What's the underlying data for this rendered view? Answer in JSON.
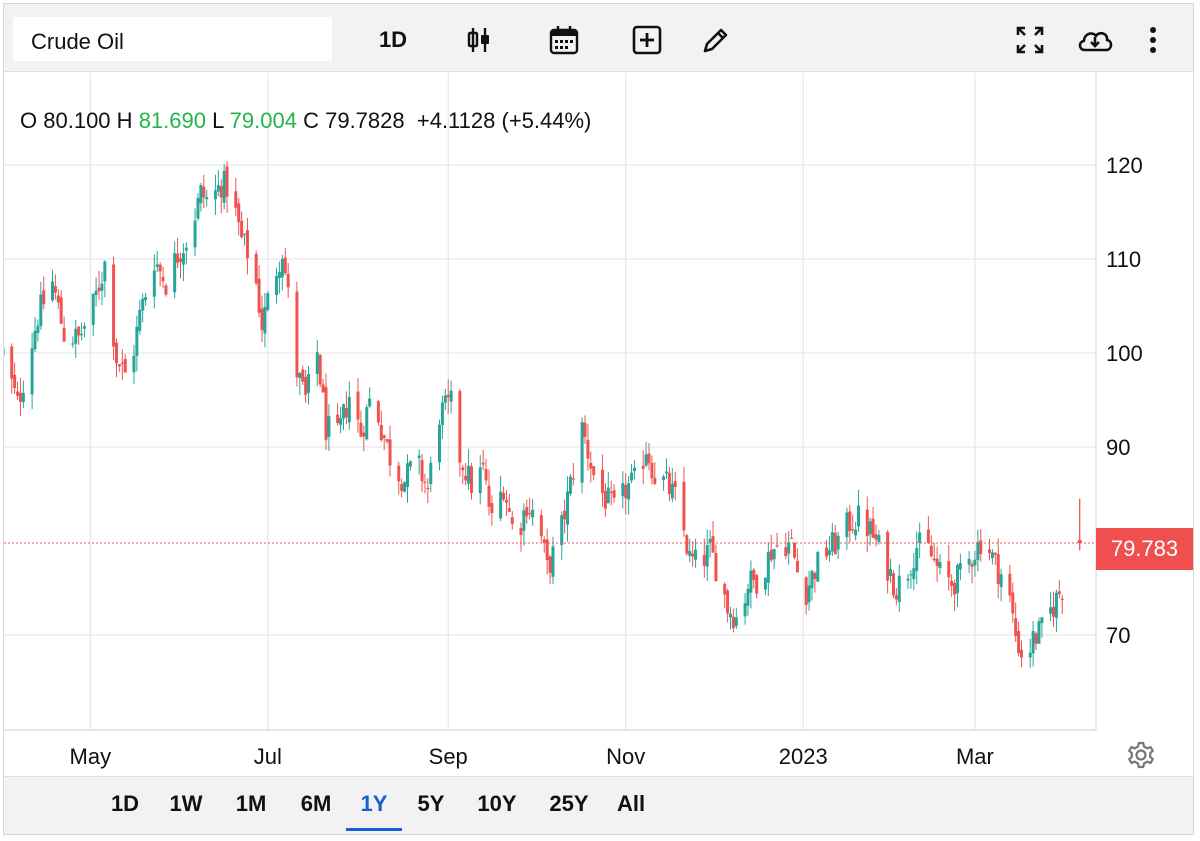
{
  "toolbar": {
    "symbol_value": "Crude Oil",
    "interval_label": "1D",
    "icons": [
      "candlestick-icon",
      "calendar-icon",
      "add-indicator-icon",
      "pencil-icon",
      "fullscreen-icon",
      "cloud-download-icon",
      "more-vertical-icon"
    ]
  },
  "ohlc": {
    "o_label": "O",
    "o_value": "80.100",
    "h_label": "H",
    "h_value": "81.690",
    "l_label": "L",
    "l_value": "79.004",
    "c_label": "C",
    "c_value": "79.7828",
    "change": "+4.1128",
    "change_pct": "(+5.44%)"
  },
  "price_tag": "79.783",
  "range_buttons": [
    {
      "label": "1D",
      "active": false
    },
    {
      "label": "1W",
      "active": false
    },
    {
      "label": "1M",
      "active": false
    },
    {
      "label": "6M",
      "active": false
    },
    {
      "label": "1Y",
      "active": true
    },
    {
      "label": "5Y",
      "active": false
    },
    {
      "label": "10Y",
      "active": false
    },
    {
      "label": "25Y",
      "active": false
    },
    {
      "label": "All",
      "active": false
    }
  ],
  "colors": {
    "up": "#26a69a",
    "down": "#ef5350",
    "up_text": "#25b34a",
    "accent": "#1a5fd1",
    "last_price": "#ef4f4f"
  },
  "chart_data": {
    "type": "candlestick",
    "title": "",
    "xlabel": "",
    "ylabel": "",
    "yticks": [
      120,
      110,
      100,
      90,
      70
    ],
    "ylim": [
      60,
      126
    ],
    "xticks": [
      "May",
      "Jul",
      "Sep",
      "Nov",
      "2023",
      "Mar"
    ],
    "last_close": 79.783,
    "last_candle": {
      "open": 80.1,
      "high": 81.69,
      "low": 79.004,
      "close": 79.7828
    },
    "close_path": [
      [
        "2022-04-01",
        100
      ],
      [
        "2022-04-06",
        94.5
      ],
      [
        "2022-04-08",
        97
      ],
      [
        "2022-04-13",
        104
      ],
      [
        "2022-04-18",
        107.5
      ],
      [
        "2022-04-22",
        102
      ],
      [
        "2022-04-27",
        101.5
      ],
      [
        "2022-05-02",
        105
      ],
      [
        "2022-05-06",
        109.5
      ],
      [
        "2022-05-10",
        99.5
      ],
      [
        "2022-05-14",
        97
      ],
      [
        "2022-05-18",
        104
      ],
      [
        "2022-05-23",
        110
      ],
      [
        "2022-05-27",
        107.5
      ],
      [
        "2022-05-31",
        110.5
      ],
      [
        "2022-06-04",
        112.5
      ],
      [
        "2022-06-08",
        117
      ],
      [
        "2022-06-11",
        116
      ],
      [
        "2022-06-15",
        118
      ],
      [
        "2022-06-18",
        117.5
      ],
      [
        "2022-06-22",
        112
      ],
      [
        "2022-06-26",
        109.5
      ],
      [
        "2022-06-29",
        103
      ],
      [
        "2022-07-03",
        108
      ],
      [
        "2022-07-06",
        111
      ],
      [
        "2022-07-08",
        106
      ],
      [
        "2022-07-11",
        98
      ],
      [
        "2022-07-14",
        95
      ],
      [
        "2022-07-18",
        100
      ],
      [
        "2022-07-21",
        92
      ],
      [
        "2022-07-25",
        91
      ],
      [
        "2022-07-29",
        95.5
      ],
      [
        "2022-08-02",
        91.5
      ],
      [
        "2022-08-06",
        96
      ],
      [
        "2022-08-09",
        92
      ],
      [
        "2022-08-13",
        88
      ],
      [
        "2022-08-17",
        86.5
      ],
      [
        "2022-08-21",
        88.5
      ],
      [
        "2022-08-25",
        85.5
      ],
      [
        "2022-08-29",
        93.5
      ],
      [
        "2022-09-02",
        94.5
      ],
      [
        "2022-09-05",
        89
      ],
      [
        "2022-09-09",
        86
      ],
      [
        "2022-09-13",
        87.5
      ],
      [
        "2022-09-16",
        82
      ],
      [
        "2022-09-20",
        86
      ],
      [
        "2022-09-24",
        80
      ],
      [
        "2022-09-28",
        84
      ],
      [
        "2022-10-02",
        82
      ],
      [
        "2022-10-05",
        77
      ],
      [
        "2022-10-09",
        80
      ],
      [
        "2022-10-13",
        86
      ],
      [
        "2022-10-17",
        92
      ],
      [
        "2022-10-21",
        87
      ],
      [
        "2022-10-25",
        84.5
      ],
      [
        "2022-10-29",
        83
      ],
      [
        "2022-11-01",
        85.5
      ],
      [
        "2022-11-05",
        86.5
      ],
      [
        "2022-11-08",
        90
      ],
      [
        "2022-11-11",
        87
      ],
      [
        "2022-11-15",
        86
      ],
      [
        "2022-11-19",
        84
      ],
      [
        "2022-11-23",
        78
      ],
      [
        "2022-11-26",
        77.5
      ],
      [
        "2022-11-30",
        79
      ],
      [
        "2022-12-03",
        76.5
      ],
      [
        "2022-12-06",
        73
      ],
      [
        "2022-12-10",
        71.5
      ],
      [
        "2022-12-13",
        75.5
      ],
      [
        "2022-12-17",
        76
      ],
      [
        "2022-12-21",
        79
      ],
      [
        "2022-12-25",
        80
      ],
      [
        "2022-12-28",
        79.5
      ],
      [
        "2023-01-01",
        74
      ],
      [
        "2023-01-05",
        77
      ],
      [
        "2023-01-09",
        79
      ],
      [
        "2023-01-13",
        80
      ],
      [
        "2023-01-17",
        82
      ],
      [
        "2023-01-21",
        82.5
      ],
      [
        "2023-01-25",
        80.5
      ],
      [
        "2023-01-29",
        78
      ],
      [
        "2023-02-02",
        75
      ],
      [
        "2023-02-06",
        77
      ],
      [
        "2023-02-09",
        79.5
      ],
      [
        "2023-02-13",
        79
      ],
      [
        "2023-02-17",
        76.5
      ],
      [
        "2023-02-21",
        75.5
      ],
      [
        "2023-02-25",
        76.5
      ],
      [
        "2023-02-28",
        78.5
      ],
      [
        "2023-03-04",
        80.5
      ],
      [
        "2023-03-08",
        77.5
      ],
      [
        "2023-03-12",
        75.5
      ],
      [
        "2023-03-15",
        70
      ],
      [
        "2023-03-18",
        67
      ],
      [
        "2023-03-21",
        69.5
      ],
      [
        "2023-03-24",
        70.5
      ],
      [
        "2023-03-27",
        72.5
      ],
      [
        "2023-03-30",
        74.5
      ],
      [
        "2023-04-01",
        75.5
      ]
    ]
  }
}
